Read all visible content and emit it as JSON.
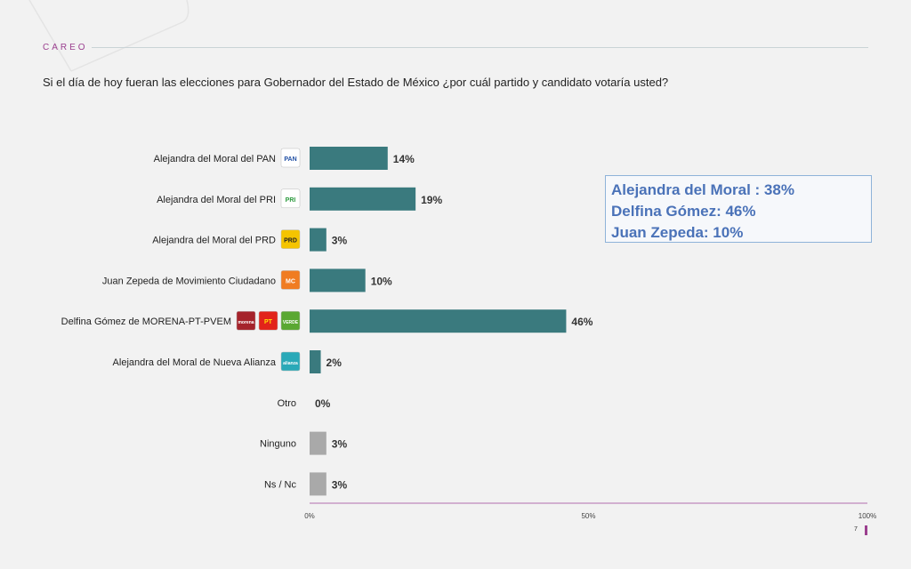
{
  "section": "CAREO",
  "question": "Si el día de hoy fueran las elecciones para Gobernador del Estado de México ¿por cuál partido y candidato votaría usted?",
  "colors": {
    "bar": "#3a7a7e",
    "other": "#a9a9a9",
    "axis": "#c79ac4",
    "accent": "#9b3f8f"
  },
  "chart_data": {
    "type": "bar",
    "orientation": "horizontal",
    "categories": [
      "Alejandra del Moral del PAN",
      "Alejandra del Moral del PRI",
      "Alejandra del Moral del PRD",
      "Juan Zepeda de Movimiento Ciudadano",
      "Delfina Gómez de MORENA-PT-PVEM",
      "Alejandra del Moral de Nueva Alianza",
      "Otro",
      "Ninguno",
      "Ns / Nc"
    ],
    "values": [
      14,
      19,
      3,
      10,
      46,
      2,
      0,
      3,
      3
    ],
    "value_labels": [
      "14%",
      "19%",
      "3%",
      "10%",
      "46%",
      "2%",
      "0%",
      "3%",
      "3%"
    ],
    "xlim": [
      0,
      100
    ],
    "xticks": [
      "0%",
      "50%",
      "100%"
    ],
    "logos": [
      [
        "PAN"
      ],
      [
        "PRI"
      ],
      [
        "PRD"
      ],
      [
        "MC"
      ],
      [
        "morena",
        "PT",
        "VERDE"
      ],
      [
        "alianza"
      ],
      [],
      [],
      []
    ]
  },
  "summary": [
    "Alejandra del Moral : 38%",
    "Delfina Gómez: 46%",
    "Juan Zepeda: 10%"
  ],
  "page_number": "7"
}
